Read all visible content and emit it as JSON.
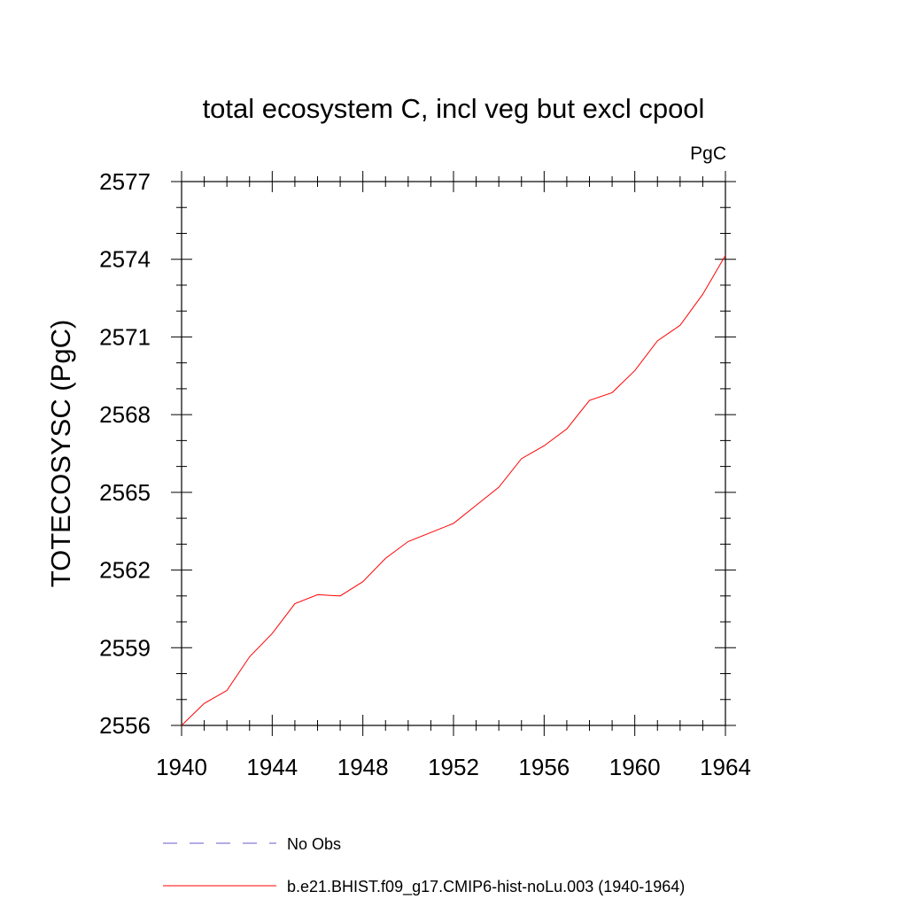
{
  "chart_data": {
    "type": "line",
    "title": "total ecosystem C, incl veg but excl cpool",
    "units": "PgC",
    "xlabel": "",
    "ylabel": "TOTECOSYSC  (PgC)",
    "xlim": [
      1940,
      1964
    ],
    "ylim": [
      2556,
      2577
    ],
    "xticks": [
      1940,
      1944,
      1948,
      1952,
      1956,
      1960,
      1964
    ],
    "yticks": [
      2556,
      2559,
      2562,
      2565,
      2568,
      2571,
      2574,
      2577
    ],
    "x": [
      1940,
      1941,
      1942,
      1943,
      1944,
      1945,
      1946,
      1947,
      1948,
      1949,
      1950,
      1951,
      1952,
      1953,
      1954,
      1955,
      1956,
      1957,
      1958,
      1959,
      1960,
      1961,
      1962,
      1963,
      1964
    ],
    "series": [
      {
        "name": "b.e21.BHIST.f09_g17.CMIP6-hist-noLu.003 (1940-1964)",
        "color": "#ff0000",
        "style": "solid",
        "values": [
          2556.0,
          2556.85,
          2557.35,
          2558.65,
          2559.55,
          2560.7,
          2561.05,
          2561.0,
          2561.55,
          2562.45,
          2563.1,
          2563.45,
          2563.8,
          2564.5,
          2565.2,
          2566.3,
          2566.8,
          2567.45,
          2568.55,
          2568.85,
          2569.7,
          2570.85,
          2571.45,
          2572.65,
          2574.15
        ]
      }
    ],
    "legend": [
      {
        "label": "No Obs",
        "color": "#6a5acd",
        "style": "dashed"
      },
      {
        "label": "b.e21.BHIST.f09_g17.CMIP6-hist-noLu.003 (1940-1964)",
        "color": "#ff0000",
        "style": "solid"
      }
    ],
    "legend_position": "bottom",
    "grid": false
  }
}
